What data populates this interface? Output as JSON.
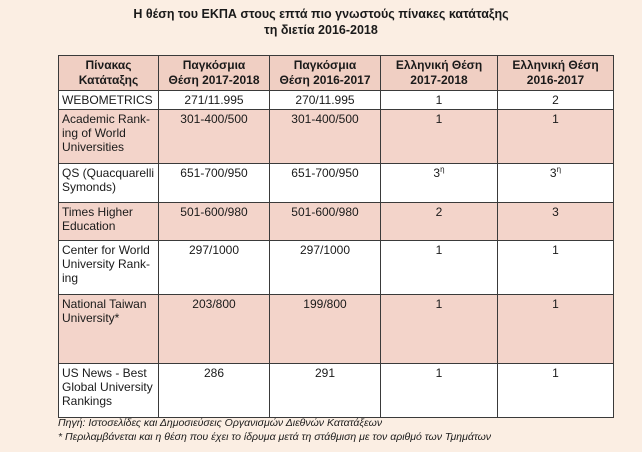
{
  "title": {
    "line1": "Η θέση του ΕΚΠΑ στους επτά πιο γνωστούς πίνακες κατάταξης",
    "line2": "τη διετία 2016-2018"
  },
  "table": {
    "headers": [
      {
        "l1": "Πίνακας",
        "l2": "Κατάταξης"
      },
      {
        "l1": "Παγκόσμια",
        "l2": "Θέση 2017-2018"
      },
      {
        "l1": "Παγκόσμια",
        "l2": "Θέση 2016-2017"
      },
      {
        "l1": "Ελληνική Θέση",
        "l2": "2017-2018"
      },
      {
        "l1": "Ελληνική Θέση",
        "l2": "2016-2017"
      }
    ],
    "rows": [
      {
        "name": "WEBOMETRICS",
        "w1718": "271/11.995",
        "w1617": "270/11.995",
        "g1718": "1",
        "g1617": "2",
        "g1718_sup": "",
        "g1617_sup": ""
      },
      {
        "name": "Academic Rank-ing of World Universities",
        "w1718": "301-400/500",
        "w1617": "301-400/500",
        "g1718": "1",
        "g1617": "1",
        "g1718_sup": "",
        "g1617_sup": ""
      },
      {
        "name": "QS (Quacquarelli Symonds)",
        "w1718": "651-700/950",
        "w1617": "651-700/950",
        "g1718": "3",
        "g1617": "3",
        "g1718_sup": "η",
        "g1617_sup": "η"
      },
      {
        "name": "Times Higher Education",
        "w1718": "501-600/980",
        "w1617": "501-600/980",
        "g1718": "2",
        "g1617": "3",
        "g1718_sup": "",
        "g1617_sup": ""
      },
      {
        "name": "Center for World University Rank-ing",
        "w1718": "297/1000",
        "w1617": "297/1000",
        "g1718": "1",
        "g1617": "1",
        "g1718_sup": "",
        "g1617_sup": ""
      },
      {
        "name": "National Taiwan University*",
        "w1718": "203/800",
        "w1617": "199/800",
        "g1718": "1",
        "g1617": "1",
        "g1718_sup": "",
        "g1617_sup": ""
      },
      {
        "name": "US News - Best Global University Rankings",
        "w1718": "286",
        "w1617": "291",
        "g1718": "1",
        "g1617": "1",
        "g1718_sup": "",
        "g1617_sup": ""
      }
    ]
  },
  "footer": {
    "source": "Πηγή: Ιστοσελίδες και Δημοσιεύσεις Οργανισμών Διεθνών Κατατάξεων",
    "note": "* Περιλαμβάνεται και η θέση που έχει το ίδρυμα μετά τη στάθμιση με τον αριθμό των Τμημάτων"
  }
}
